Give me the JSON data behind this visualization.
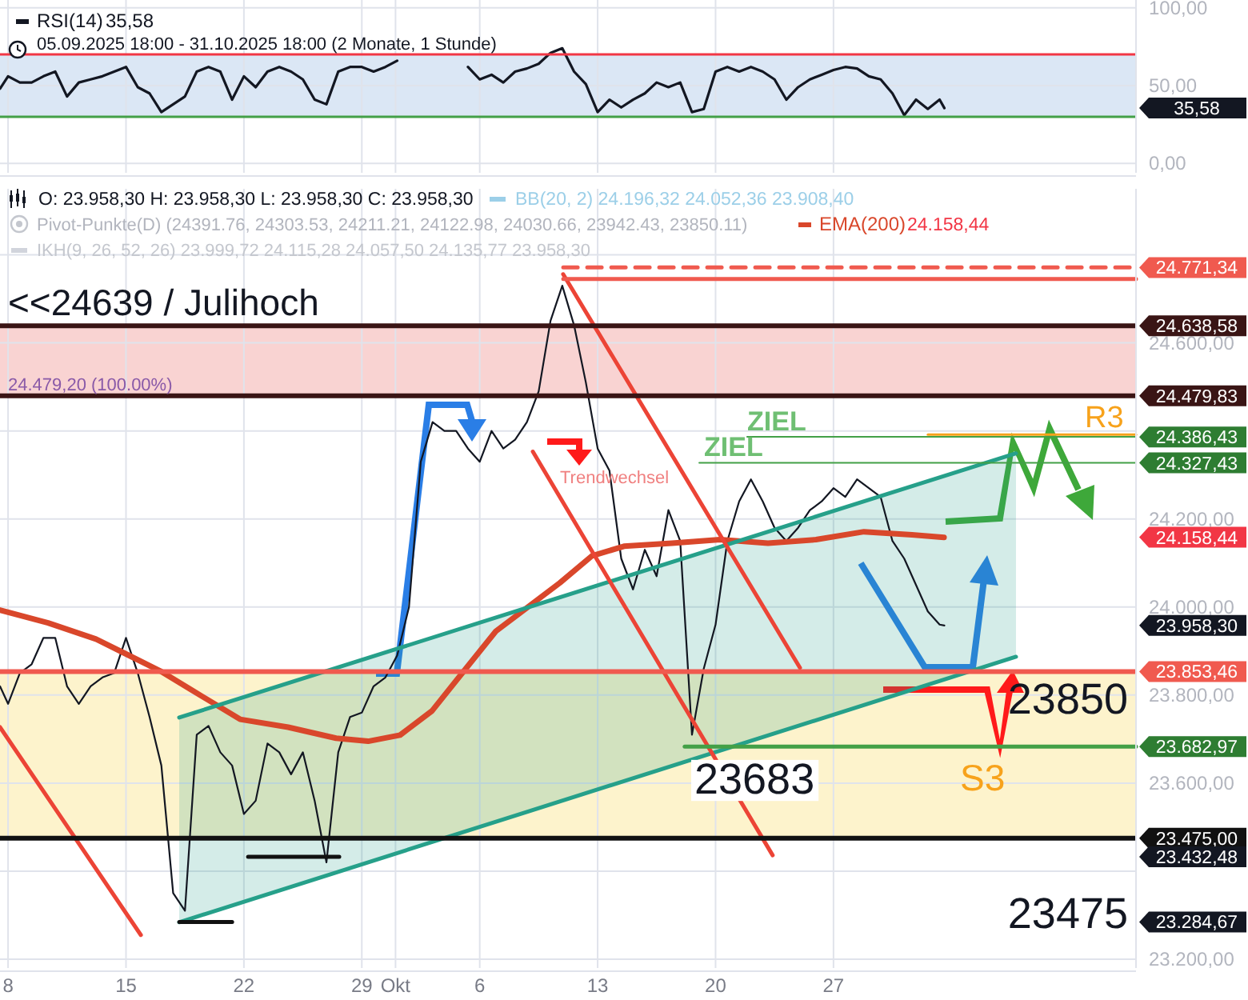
{
  "chart_data": [
    {
      "type": "line",
      "x": [
        "2025-09-07T12:30",
        "2025-09-08T00:00",
        "2025-09-08T16:48",
        "2025-09-09T09:36",
        "2025-09-10T02:24",
        "2025-09-10T19:12",
        "2025-09-11T12:00",
        "2025-09-12T04:48",
        "2025-09-12T21:36",
        "2025-09-13T14:24",
        "2025-09-14T07:12",
        "2025-09-15T00:00",
        "2025-09-15T16:48",
        "2025-09-16T09:36",
        "2025-09-17T02:24",
        "2025-09-17T19:12",
        "2025-09-18T12:00",
        "2025-09-19T04:48",
        "2025-09-19T21:36",
        "2025-09-20T14:24",
        "2025-09-21T07:12",
        "2025-09-22T00:00",
        "2025-09-22T16:48",
        "2025-09-23T09:36",
        "2025-09-24T02:24",
        "2025-09-24T19:12",
        "2025-09-25T12:00",
        "2025-09-26T04:48",
        "2025-09-26T21:36",
        "2025-09-27T14:24",
        "2025-09-28T07:12",
        "2025-09-29T00:00",
        "2025-09-29T16:48",
        "2025-09-30T09:36",
        "2025-10-01T02:24",
        "2025-10-01T19:12",
        "2025-10-02T12:00",
        "2025-10-03T04:48",
        "2025-10-03T21:36",
        "2025-10-04T14:24",
        "2025-10-05T07:12",
        "2025-10-06T00:00",
        "2025-10-06T16:48",
        "2025-10-07T09:36",
        "2025-10-08T02:24",
        "2025-10-08T19:12",
        "2025-10-09T12:00",
        "2025-10-10T04:48",
        "2025-10-10T21:36",
        "2025-10-11T14:24",
        "2025-10-12T07:12",
        "2025-10-13T00:00",
        "2025-10-13T16:48",
        "2025-10-14T09:36",
        "2025-10-15T02:24",
        "2025-10-15T19:12",
        "2025-10-16T12:00",
        "2025-10-17T04:48",
        "2025-10-17T21:36",
        "2025-10-18T14:24",
        "2025-10-19T07:12",
        "2025-10-20T00:00",
        "2025-10-20T16:48",
        "2025-10-21T09:36",
        "2025-10-22T02:24",
        "2025-10-22T19:12",
        "2025-10-23T12:00",
        "2025-10-24T04:48",
        "2025-10-24T21:36",
        "2025-10-25T14:24",
        "2025-10-26T07:12",
        "2025-10-27T00:00",
        "2025-10-27T16:48",
        "2025-10-28T09:36",
        "2025-10-29T02:24",
        "2025-10-29T19:12",
        "2025-10-30T12:00",
        "2025-10-31T04:48",
        "2025-10-31T21:36",
        "2025-11-01T14:24",
        "2025-11-02T07:12",
        "2025-11-02T14:00"
      ],
      "series": [
        {
          "name": "RSI(14)",
          "color": "#131722",
          "values": [
            48,
            56,
            52,
            52,
            56,
            59,
            43,
            52,
            54,
            56,
            59,
            62,
            49,
            45,
            33,
            38,
            43,
            59,
            62,
            59,
            41,
            56,
            49,
            59,
            62,
            59,
            54,
            41,
            38,
            59,
            62,
            62,
            59,
            62,
            66,
            null,
            null,
            null,
            null,
            null,
            62,
            54,
            57,
            52,
            59,
            61,
            64,
            71,
            74,
            59,
            51,
            33,
            41,
            36,
            41,
            45,
            52,
            49,
            52,
            33,
            35,
            59,
            62,
            59,
            62,
            59,
            54,
            41,
            49,
            54,
            57,
            60,
            62,
            61,
            56,
            54,
            45,
            31,
            41,
            35,
            41,
            35.58
          ]
        }
      ],
      "xlim": [
        "2025-09-07T12:30",
        "2025-11-13T23:00"
      ],
      "ylim": [
        -6,
        105
      ],
      "xticks": [
        {
          "value": "2025-09-08",
          "label": null
        },
        {
          "value": "2025-09-15",
          "label": null
        },
        {
          "value": "2025-09-22",
          "label": null
        },
        {
          "value": "2025-09-29",
          "label": null
        },
        {
          "value": "2025-10-01",
          "label": null
        },
        {
          "value": "2025-10-06",
          "label": null
        },
        {
          "value": "2025-10-13",
          "label": null
        },
        {
          "value": "2025-10-20",
          "label": null
        },
        {
          "value": "2025-10-27",
          "label": null
        }
      ],
      "yticks": [
        {
          "value": 0,
          "label": "0,00"
        },
        {
          "value": 50,
          "label": "50,00"
        },
        {
          "value": 100,
          "label": "100,00"
        }
      ],
      "tick_labels": "y",
      "grid": true,
      "legend": "top left",
      "ref_lines": [
        {
          "axis": "y",
          "value": 70,
          "color": "#f23645"
        },
        {
          "axis": "y",
          "value": 30,
          "color": "#43a047"
        }
      ],
      "bands": [
        {
          "axis": "y",
          "from": 30,
          "to": 70,
          "color": "#dbe7f5"
        }
      ],
      "annotations": [
        "35,58",
        "05.09.2025 18:00 - 31.10.2025 18:00  (2 Monate, 1 Stunde)",
        "35,58"
      ]
    },
    {
      "type": "line",
      "x": [
        "2025-09-07T12:30",
        "2025-09-08T00:00",
        "2025-09-08T16:48",
        "2025-09-09T09:36",
        "2025-09-10T02:24",
        "2025-09-10T19:12",
        "2025-09-11T12:00",
        "2025-09-12T04:48",
        "2025-09-12T21:36",
        "2025-09-13T14:24",
        "2025-09-14T07:12",
        "2025-09-15T00:00",
        "2025-09-15T16:48",
        "2025-09-16T09:36",
        "2025-09-17T02:24",
        "2025-09-17T19:12",
        "2025-09-18T12:00",
        "2025-09-19T04:48",
        "2025-09-19T21:36",
        "2025-09-20T14:24",
        "2025-09-21T07:12",
        "2025-09-22T00:00",
        "2025-09-22T16:48",
        "2025-09-23T09:36",
        "2025-09-24T02:24",
        "2025-09-24T19:12",
        "2025-09-25T12:00",
        "2025-09-26T04:48",
        "2025-09-26T21:36",
        "2025-09-27T14:24",
        "2025-09-28T07:12",
        "2025-09-29T00:00",
        "2025-09-29T16:48",
        "2025-09-30T09:36",
        "2025-10-01T02:24",
        "2025-10-01T19:12",
        "2025-10-02T12:00",
        "2025-10-03T04:48",
        "2025-10-03T21:36",
        "2025-10-04T14:24",
        "2025-10-05T07:12",
        "2025-10-06T00:00",
        "2025-10-06T16:48",
        "2025-10-07T09:36",
        "2025-10-08T02:24",
        "2025-10-08T19:12",
        "2025-10-09T12:00",
        "2025-10-10T04:48",
        "2025-10-10T21:36",
        "2025-10-11T14:24",
        "2025-10-12T07:12",
        "2025-10-13T00:00",
        "2025-10-13T16:48",
        "2025-10-14T09:36",
        "2025-10-15T02:24",
        "2025-10-15T19:12",
        "2025-10-16T12:00",
        "2025-10-17T04:48",
        "2025-10-17T21:36",
        "2025-10-18T14:24",
        "2025-10-19T07:12",
        "2025-10-20T00:00",
        "2025-10-20T16:48",
        "2025-10-21T09:36",
        "2025-10-22T02:24",
        "2025-10-22T19:12",
        "2025-10-23T12:00",
        "2025-10-24T04:48",
        "2025-10-24T21:36",
        "2025-10-25T14:24",
        "2025-10-26T07:12",
        "2025-10-27T00:00",
        "2025-10-27T16:48",
        "2025-10-28T09:36",
        "2025-10-29T02:24",
        "2025-10-29T19:12",
        "2025-10-30T12:00",
        "2025-10-31T04:48",
        "2025-10-31T21:36",
        "2025-11-01T14:24",
        "2025-11-02T07:12",
        "2025-11-02T14:00"
      ],
      "series": [
        {
          "color": "#131722",
          "values": [
            23820,
            23780,
            23850,
            23870,
            23930,
            23930,
            23820,
            23780,
            23820,
            23840,
            23850,
            23930,
            23850,
            23750,
            23640,
            23350,
            23310,
            23710,
            23730,
            23670,
            23640,
            23530,
            23560,
            23690,
            23670,
            23620,
            23670,
            23560,
            23420,
            23670,
            23750,
            23760,
            23820,
            23840,
            23890,
            24000,
            24330,
            24420,
            24400,
            24400,
            24360,
            24330,
            24400,
            24360,
            24380,
            24420,
            24490,
            24650,
            24730,
            24640,
            24510,
            24360,
            24310,
            24110,
            24040,
            24130,
            24070,
            24220,
            24150,
            23710,
            23860,
            23960,
            24150,
            24240,
            24290,
            24240,
            24180,
            24150,
            24180,
            24220,
            24240,
            24270,
            24250,
            24290,
            24270,
            24250,
            24150,
            24110,
            24050,
            23990,
            23960,
            23958
          ]
        },
        {
          "name": "EMA(200)",
          "color": "#d9472b",
          "x": [
            "2025-09-07T12:30",
            "2025-09-10T09:00",
            "2025-09-13T05:20",
            "2025-09-15T03:00",
            "2025-09-17T00:30",
            "2025-09-18T22:00",
            "2025-09-21T18:30",
            "2025-09-24T15:00",
            "2025-09-27T11:20",
            "2025-09-29T09:00",
            "2025-10-01T06:30",
            "2025-10-03T04:00",
            "2025-10-05T01:40",
            "2025-10-06T23:00",
            "2025-10-08T20:40",
            "2025-10-10T18:15",
            "2025-10-12T15:50",
            "2025-10-14T13:30",
            "2025-10-17T09:50",
            "2025-10-20T06:15",
            "2025-10-23T02:40",
            "2025-10-25T23:00",
            "2025-10-28T19:25",
            "2025-10-31T15:50",
            "2025-11-02T13:30"
          ],
          "values": [
            23993,
            23964,
            23927,
            23891,
            23855,
            23811,
            23745,
            23727,
            23702,
            23695,
            23709,
            23764,
            23855,
            23945,
            24000,
            24055,
            24116,
            24138,
            24145,
            24153,
            24145,
            24153,
            24171,
            24164,
            24158
          ]
        },
        {
          "color": "#26a08a",
          "x": [
            "2025-09-18T03:50",
            "2025-11-06T20:00"
          ],
          "values": [
            23749,
            24349
          ],
          "lower": [
            23284,
            23887
          ],
          "upper": [
            23749,
            24349
          ]
        },
        {
          "color": "#26a08a",
          "x": [
            "2025-09-18T03:50",
            "2025-11-06T20:00"
          ],
          "values": [
            23284,
            23887
          ]
        },
        {
          "color": "#ec4436",
          "x": [
            "2025-10-10T22:50",
            "2025-10-25T00:15"
          ],
          "values": [
            24756,
            23862
          ]
        },
        {
          "color": "#ec4436",
          "x": [
            "2025-10-09T03:40",
            "2025-10-23T09:20"
          ],
          "values": [
            24353,
            23436
          ]
        },
        {
          "color": "#ec4436",
          "x": [
            "2025-09-07T12:30",
            "2025-09-15T21:10"
          ],
          "values": [
            23727,
            23255
          ]
        },
        {
          "color": "#f05a4f",
          "line_style": "dashed",
          "x": [
            "2025-10-10T23:00",
            "2025-11-13T23:00"
          ],
          "values": [
            24771.34,
            24771.34
          ]
        },
        {
          "color": "#f05a4f",
          "x": [
            "2025-10-10T23:00",
            "2025-11-13T23:00"
          ],
          "values": [
            24745,
            24745
          ]
        },
        {
          "color": "#43a047",
          "x": [
            "2025-10-21T21:00",
            "2025-11-13T23:00"
          ],
          "values": [
            24386.43,
            24386.43
          ]
        },
        {
          "color": "#43a047",
          "x": [
            "2025-10-19T00:45",
            "2025-11-13T23:00"
          ],
          "values": [
            24327.43,
            24327.43
          ]
        },
        {
          "color": "#f7a21b",
          "x": [
            "2025-11-01T14:30",
            "2025-11-13T23:00"
          ],
          "values": [
            24391.76,
            24391.76
          ]
        },
        {
          "color": "#43a047",
          "x": [
            "2025-10-18T04:00",
            "2025-11-13T23:00"
          ],
          "values": [
            23682.97,
            23682.97
          ]
        },
        {
          "color": "#111111",
          "x": [
            "2025-09-18T04:00",
            "2025-09-21T07:10"
          ],
          "values": [
            23284.67,
            23284.67
          ]
        },
        {
          "color": "#111111",
          "x": [
            "2025-09-22T06:00",
            "2025-09-27T15:50"
          ],
          "values": [
            23432.48,
            23432.48
          ]
        }
      ],
      "xlim": [
        "2025-09-07T12:30",
        "2025-11-13T23:00"
      ],
      "ylim": [
        23180,
        24950
      ],
      "xticks": [
        {
          "value": "2025-09-08",
          "label": "8"
        },
        {
          "value": "2025-09-15",
          "label": "15"
        },
        {
          "value": "2025-09-22",
          "label": "22"
        },
        {
          "value": "2025-09-29",
          "label": "29"
        },
        {
          "value": "2025-10-01",
          "label": "Okt"
        },
        {
          "value": "2025-10-06",
          "label": "6"
        },
        {
          "value": "2025-10-13",
          "label": "13"
        },
        {
          "value": "2025-10-20",
          "label": "20"
        },
        {
          "value": "2025-10-27",
          "label": "27"
        }
      ],
      "yticks": [
        {
          "value": 23200,
          "label": "23.200,00"
        },
        {
          "value": 23400,
          "label": null
        },
        {
          "value": 23600,
          "label": "23.600,00"
        },
        {
          "value": 23800,
          "label": "23.800,00"
        },
        {
          "value": 24000,
          "label": "24.000,00"
        },
        {
          "value": 24200,
          "label": "24.200,00"
        },
        {
          "value": 24400,
          "label": null
        },
        {
          "value": 24600,
          "label": "24.600,00"
        },
        {
          "value": 24800,
          "label": null
        }
      ],
      "grid": true,
      "legend": "top right",
      "ref_lines": [
        {
          "axis": "y",
          "value": 24638.58,
          "label": "24.638,58",
          "color": "#3a1515"
        },
        {
          "axis": "y",
          "value": 24479.83,
          "label": "24.479,83",
          "color": "#3a1515"
        },
        {
          "axis": "y",
          "value": 23853.46,
          "label": "23.853,46",
          "color": "#f05a4f"
        },
        {
          "axis": "y",
          "value": 23475,
          "label": "23.475,00",
          "color": "#111111"
        }
      ],
      "bands": [
        {
          "axis": "y",
          "from": 24479.83,
          "to": 24638.58,
          "color": "#f9d3d2"
        },
        {
          "axis": "y",
          "from": 23475,
          "to": 23853.46,
          "color": "#fdf3cc"
        }
      ],
      "annotations": [
        "O: 23.958,30  H: 23.958,30  L: 23.958,30  C: 23.958,30",
        "BB(20, 2)  24.196,32  24.052,36  23.908,40",
        "Pivot-Punkte(D)  (24391.76,  24303.53,  24211.21,  24122.98,  24030.66,  23942.43,  23850.11)",
        "24.158,44",
        "IKH(9, 26, 52, 26)  23.999,72  24.115,28  24.057,50  24.135,77  23.958,30",
        "<<24639 / Julihoch",
        "24.479,20 (100.00%)",
        "Trendwechsel",
        "ZIEL",
        "ZIEL",
        "R3",
        "S3",
        "23850",
        "23683",
        "23475",
        "24.771,34",
        "24.386,43",
        "24.327,43",
        "24.158,44",
        "23.958,30",
        "23.682,97",
        "23.432,48",
        "23.284,67"
      ]
    }
  ]
}
